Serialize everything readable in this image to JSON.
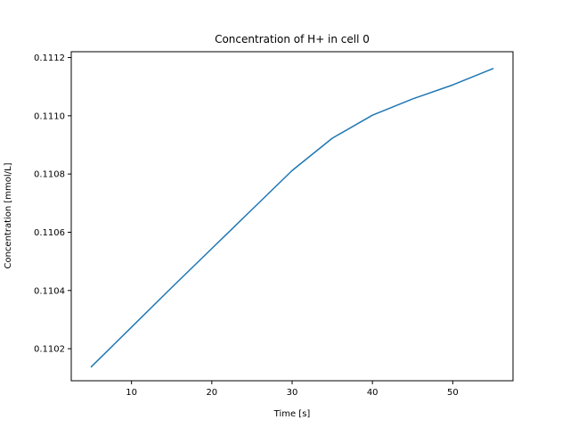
{
  "chart_data": {
    "type": "line",
    "title": "Concentration of H+ in cell 0",
    "xlabel": "Time [s]",
    "ylabel": "Concentration [mmol/L]",
    "xlim": [
      2.5,
      57.5
    ],
    "ylim": [
      0.11009,
      0.11122
    ],
    "xticks": [
      10,
      20,
      30,
      40,
      50
    ],
    "xtick_labels": [
      "10",
      "20",
      "30",
      "40",
      "50"
    ],
    "yticks": [
      0.1102,
      0.1104,
      0.1106,
      0.1108,
      0.111,
      0.1112
    ],
    "ytick_labels": [
      "0.1102",
      "0.1104",
      "0.1106",
      "0.1108",
      "0.1110",
      "0.1112"
    ],
    "grid": false,
    "series": [
      {
        "color": "#1f77b4",
        "x": [
          5,
          10,
          15,
          20,
          25,
          30,
          35,
          40,
          45,
          50,
          55
        ],
        "y": [
          0.110138,
          0.110274,
          0.11041,
          0.110544,
          0.110678,
          0.110812,
          0.110923,
          0.111002,
          0.111058,
          0.111106,
          0.111162
        ]
      }
    ]
  }
}
